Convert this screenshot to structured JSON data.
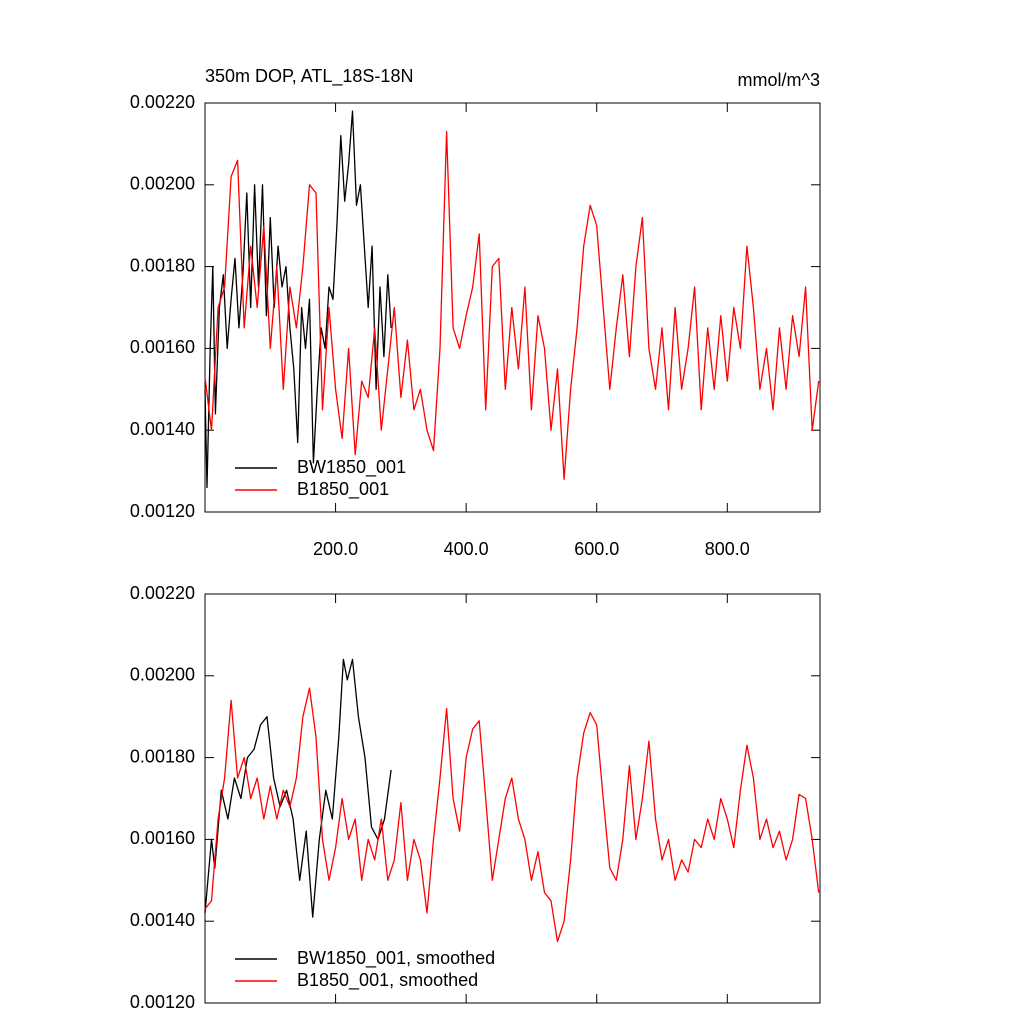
{
  "chart_data": [
    {
      "type": "line",
      "title": "350m DOP, ATL_18S-18N",
      "right_title": "mmol/m^3",
      "legend": "lower left",
      "xlim": [
        0,
        942
      ],
      "ylim": [
        0.0012,
        0.0022
      ],
      "xticks": [
        {
          "value": 200,
          "label": "200.0"
        },
        {
          "value": 400,
          "label": "400.0"
        },
        {
          "value": 600,
          "label": "600.0"
        },
        {
          "value": 800,
          "label": "800.0"
        }
      ],
      "yticks": [
        {
          "value": 0.0012,
          "label": "0.00120"
        },
        {
          "value": 0.0014,
          "label": "0.00140"
        },
        {
          "value": 0.0016,
          "label": "0.00160"
        },
        {
          "value": 0.0018,
          "label": "0.00180"
        },
        {
          "value": 0.002,
          "label": "0.00200"
        },
        {
          "value": 0.0022,
          "label": "0.00220"
        }
      ],
      "series": [
        {
          "name": "BW1850_001",
          "color": "#000000",
          "x": [
            0,
            3,
            8,
            12,
            16,
            22,
            28,
            34,
            40,
            46,
            52,
            58,
            64,
            70,
            76,
            82,
            88,
            94,
            100,
            106,
            112,
            118,
            124,
            130,
            136,
            142,
            148,
            154,
            160,
            166,
            172,
            178,
            184,
            190,
            196,
            202,
            208,
            214,
            220,
            226,
            232,
            238,
            244,
            250,
            256,
            262,
            268,
            274,
            280,
            285
          ],
          "values": [
            0.0015,
            0.00126,
            0.0016,
            0.0018,
            0.00144,
            0.0017,
            0.00178,
            0.0016,
            0.00172,
            0.00182,
            0.00165,
            0.00178,
            0.00198,
            0.0017,
            0.002,
            0.00175,
            0.002,
            0.00168,
            0.00192,
            0.0017,
            0.00185,
            0.00175,
            0.0018,
            0.00165,
            0.00155,
            0.00137,
            0.0017,
            0.0016,
            0.00172,
            0.00132,
            0.0015,
            0.00165,
            0.0016,
            0.00175,
            0.00172,
            0.0019,
            0.00212,
            0.00196,
            0.00205,
            0.00218,
            0.00195,
            0.002,
            0.00185,
            0.0017,
            0.00185,
            0.0015,
            0.00175,
            0.00158,
            0.00178,
            0.00165
          ]
        },
        {
          "name": "B1850_001",
          "color": "#ff0000",
          "x": [
            0,
            10,
            20,
            30,
            40,
            50,
            60,
            70,
            80,
            90,
            100,
            110,
            120,
            130,
            140,
            150,
            160,
            170,
            180,
            190,
            200,
            210,
            220,
            230,
            240,
            250,
            260,
            270,
            280,
            290,
            300,
            310,
            320,
            330,
            340,
            350,
            360,
            370,
            380,
            390,
            400,
            410,
            420,
            430,
            440,
            450,
            460,
            470,
            480,
            490,
            500,
            510,
            520,
            530,
            540,
            550,
            560,
            570,
            580,
            590,
            600,
            610,
            620,
            630,
            640,
            650,
            660,
            670,
            680,
            690,
            700,
            710,
            720,
            730,
            740,
            750,
            760,
            770,
            780,
            790,
            800,
            810,
            820,
            830,
            840,
            850,
            860,
            870,
            880,
            890,
            900,
            910,
            920,
            930,
            940
          ],
          "values": [
            0.00153,
            0.0014,
            0.0017,
            0.00175,
            0.00202,
            0.00206,
            0.00165,
            0.00185,
            0.0017,
            0.0019,
            0.0016,
            0.0018,
            0.0015,
            0.00175,
            0.00165,
            0.0018,
            0.002,
            0.00198,
            0.00145,
            0.0017,
            0.0015,
            0.00138,
            0.0016,
            0.00134,
            0.00152,
            0.00148,
            0.00165,
            0.0014,
            0.00155,
            0.0017,
            0.00148,
            0.00162,
            0.00145,
            0.0015,
            0.0014,
            0.00135,
            0.0016,
            0.00213,
            0.00165,
            0.0016,
            0.00168,
            0.00175,
            0.00188,
            0.00145,
            0.0018,
            0.00182,
            0.0015,
            0.0017,
            0.00155,
            0.00175,
            0.00145,
            0.00168,
            0.0016,
            0.0014,
            0.00155,
            0.00128,
            0.0015,
            0.00165,
            0.00185,
            0.00195,
            0.0019,
            0.0017,
            0.0015,
            0.00165,
            0.00178,
            0.00158,
            0.0018,
            0.00192,
            0.0016,
            0.0015,
            0.00165,
            0.00145,
            0.0017,
            0.0015,
            0.0016,
            0.00175,
            0.00145,
            0.00165,
            0.0015,
            0.00168,
            0.00152,
            0.0017,
            0.0016,
            0.00185,
            0.0017,
            0.0015,
            0.0016,
            0.00145,
            0.00165,
            0.0015,
            0.00168,
            0.00158,
            0.00175,
            0.0014,
            0.00152
          ]
        }
      ]
    },
    {
      "type": "line",
      "legend": "lower left",
      "xlim": [
        0,
        942
      ],
      "ylim": [
        0.0012,
        0.0022
      ],
      "xticks": [
        200,
        400,
        600,
        800
      ],
      "yticks": [
        {
          "value": 0.0012,
          "label": "0.00120"
        },
        {
          "value": 0.0014,
          "label": "0.00140"
        },
        {
          "value": 0.0016,
          "label": "0.00160"
        },
        {
          "value": 0.0018,
          "label": "0.00180"
        },
        {
          "value": 0.002,
          "label": "0.00200"
        },
        {
          "value": 0.0022,
          "label": "0.00220"
        }
      ],
      "series": [
        {
          "name": "BW1850_001, smoothed",
          "color": "#000000",
          "x": [
            0,
            10,
            15,
            25,
            35,
            45,
            55,
            65,
            75,
            85,
            95,
            105,
            115,
            125,
            135,
            145,
            155,
            165,
            175,
            185,
            195,
            205,
            212,
            218,
            226,
            235,
            245,
            255,
            265,
            275,
            285
          ],
          "values": [
            0.00142,
            0.0016,
            0.00153,
            0.00172,
            0.00165,
            0.00175,
            0.0017,
            0.0018,
            0.00182,
            0.00188,
            0.0019,
            0.00175,
            0.00168,
            0.00172,
            0.00165,
            0.0015,
            0.00162,
            0.00141,
            0.0016,
            0.00172,
            0.00165,
            0.00185,
            0.00204,
            0.00199,
            0.00204,
            0.0019,
            0.0018,
            0.00163,
            0.0016,
            0.00165,
            0.00177
          ]
        },
        {
          "name": "B1850_001, smoothed",
          "color": "#ff0000",
          "x": [
            0,
            10,
            20,
            30,
            40,
            50,
            60,
            70,
            80,
            90,
            100,
            110,
            120,
            130,
            140,
            150,
            160,
            170,
            180,
            190,
            200,
            210,
            220,
            230,
            240,
            250,
            260,
            270,
            280,
            290,
            300,
            310,
            320,
            330,
            340,
            350,
            360,
            370,
            380,
            390,
            400,
            410,
            420,
            430,
            440,
            450,
            460,
            470,
            480,
            490,
            500,
            510,
            520,
            530,
            540,
            550,
            560,
            570,
            580,
            590,
            600,
            610,
            620,
            630,
            640,
            650,
            660,
            670,
            680,
            690,
            700,
            710,
            720,
            730,
            740,
            750,
            760,
            770,
            780,
            790,
            800,
            810,
            820,
            830,
            840,
            850,
            860,
            870,
            880,
            890,
            900,
            910,
            920,
            930,
            940
          ],
          "values": [
            0.00143,
            0.00145,
            0.00165,
            0.00175,
            0.00194,
            0.00175,
            0.0018,
            0.0017,
            0.00175,
            0.00165,
            0.00173,
            0.00165,
            0.00172,
            0.00168,
            0.00175,
            0.0019,
            0.00197,
            0.00185,
            0.0016,
            0.0015,
            0.00158,
            0.0017,
            0.0016,
            0.00165,
            0.0015,
            0.0016,
            0.00155,
            0.00165,
            0.0015,
            0.00155,
            0.00169,
            0.0015,
            0.0016,
            0.00155,
            0.00142,
            0.0016,
            0.00175,
            0.00192,
            0.0017,
            0.00162,
            0.0018,
            0.00187,
            0.00189,
            0.0017,
            0.0015,
            0.0016,
            0.0017,
            0.00175,
            0.00165,
            0.0016,
            0.0015,
            0.00157,
            0.00147,
            0.00145,
            0.00135,
            0.0014,
            0.00155,
            0.00175,
            0.00186,
            0.00191,
            0.00188,
            0.0017,
            0.00153,
            0.0015,
            0.0016,
            0.00178,
            0.0016,
            0.0017,
            0.00184,
            0.00165,
            0.00155,
            0.0016,
            0.0015,
            0.00155,
            0.00152,
            0.0016,
            0.00158,
            0.00165,
            0.0016,
            0.0017,
            0.00165,
            0.00158,
            0.00172,
            0.00183,
            0.00175,
            0.0016,
            0.00165,
            0.00158,
            0.00162,
            0.00155,
            0.0016,
            0.00171,
            0.0017,
            0.0016,
            0.00147
          ]
        }
      ]
    }
  ]
}
